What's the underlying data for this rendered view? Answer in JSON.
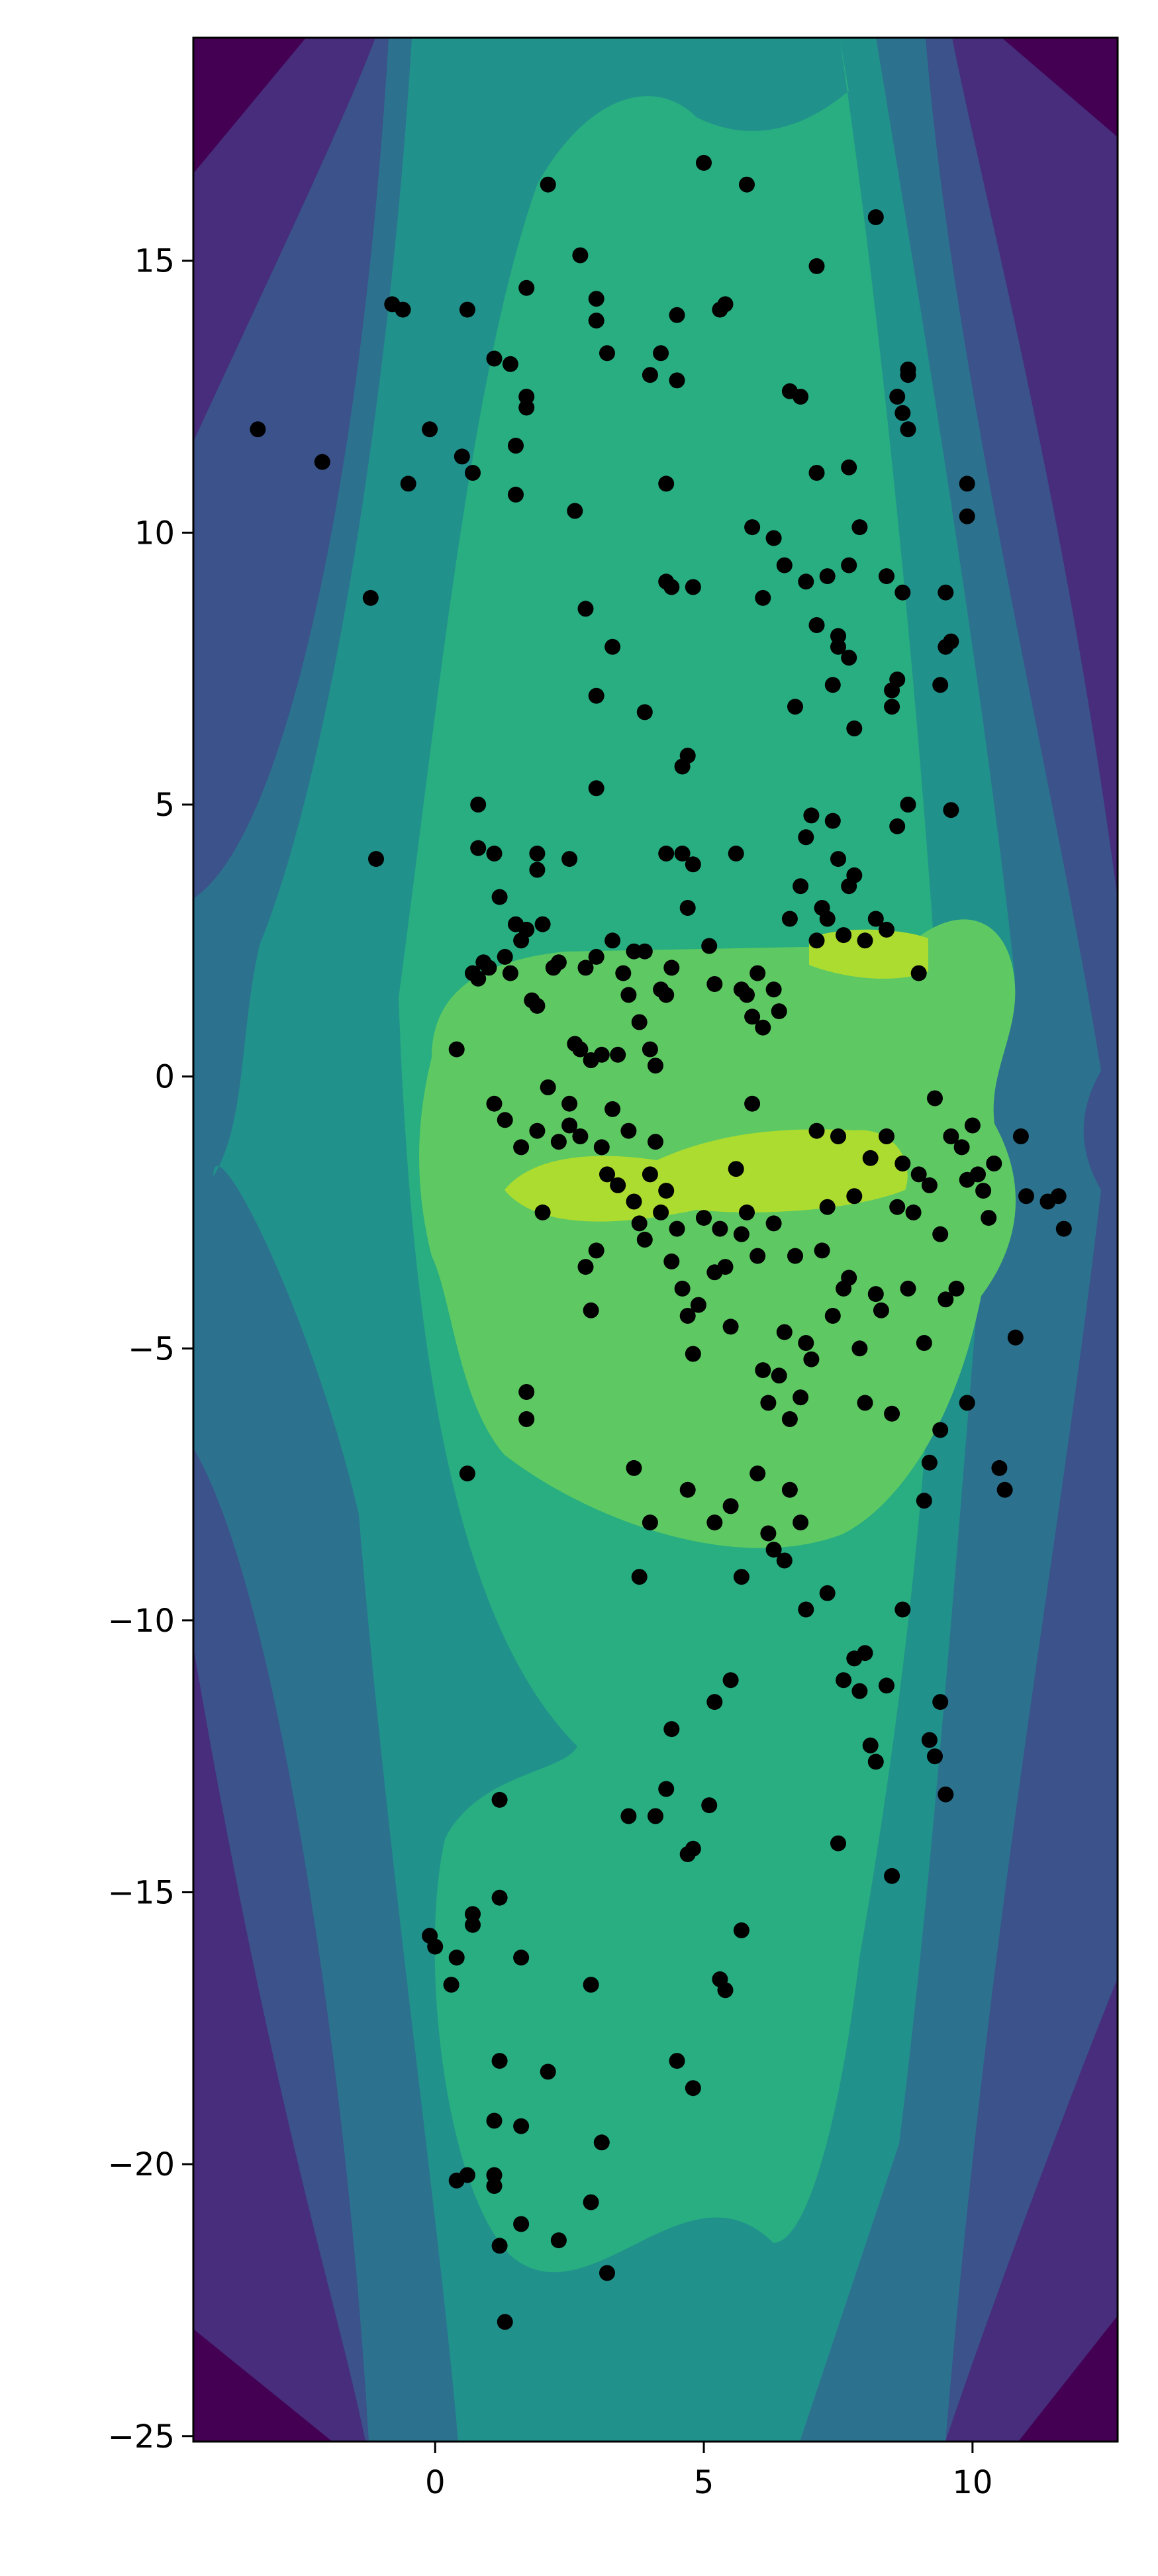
{
  "chart_data": {
    "type": "scatter",
    "subtype": "filled contour density map with scatter overlay",
    "title": "",
    "xlabel": "",
    "ylabel": "",
    "xlim": [
      -4.5,
      12.7
    ],
    "ylim": [
      -25.1,
      19.1
    ],
    "grid": false,
    "legend": "none",
    "colormap": "viridis",
    "contour_levels": [
      "#440154",
      "#472d7b",
      "#3b528b",
      "#2c728e",
      "#21918c",
      "#28ae80",
      "#5ec962",
      "#addc30",
      "#fde725"
    ],
    "x_ticks": [
      0,
      5,
      10
    ],
    "x_tick_labels": [
      "0",
      "5",
      "10"
    ],
    "y_ticks": [
      15,
      10,
      5,
      0,
      -5,
      -10,
      -15,
      -20,
      -25
    ],
    "y_tick_labels": [
      "15",
      "10",
      "5",
      "0",
      "−5",
      "−10",
      "−15",
      "−20",
      "−25"
    ],
    "point_color": "#000000",
    "points": [
      [
        -3.3,
        11.9
      ],
      [
        -2.1,
        11.3
      ],
      [
        -1.2,
        8.8
      ],
      [
        -1.1,
        4.0
      ],
      [
        -0.8,
        14.2
      ],
      [
        -0.6,
        14.1
      ],
      [
        -0.5,
        10.9
      ],
      [
        -0.1,
        11.9
      ],
      [
        0.4,
        0.5
      ],
      [
        0.5,
        11.4
      ],
      [
        0.6,
        14.1
      ],
      [
        0.7,
        11.1
      ],
      [
        0.8,
        5.0
      ],
      [
        0.8,
        4.2
      ],
      [
        1.1,
        13.2
      ],
      [
        1.4,
        13.1
      ],
      [
        1.5,
        11.6
      ],
      [
        1.5,
        10.7
      ],
      [
        1.7,
        14.5
      ],
      [
        1.7,
        12.3
      ],
      [
        1.7,
        12.5
      ],
      [
        1.9,
        3.8
      ],
      [
        2.1,
        16.4
      ],
      [
        2.6,
        10.4
      ],
      [
        2.7,
        15.1
      ],
      [
        2.8,
        8.6
      ],
      [
        3.0,
        14.3
      ],
      [
        3.0,
        13.9
      ],
      [
        3.0,
        7.0
      ],
      [
        3.2,
        13.3
      ],
      [
        3.3,
        7.9
      ],
      [
        3.9,
        6.7
      ],
      [
        4.0,
        12.9
      ],
      [
        4.2,
        13.3
      ],
      [
        4.3,
        9.1
      ],
      [
        4.3,
        10.9
      ],
      [
        4.4,
        9.0
      ],
      [
        4.5,
        14.0
      ],
      [
        4.5,
        12.8
      ],
      [
        4.6,
        5.7
      ],
      [
        4.7,
        5.9
      ],
      [
        4.8,
        9.0
      ],
      [
        5.0,
        16.8
      ],
      [
        5.3,
        14.1
      ],
      [
        5.4,
        14.2
      ],
      [
        5.8,
        16.4
      ],
      [
        5.9,
        10.1
      ],
      [
        6.1,
        8.8
      ],
      [
        6.3,
        9.9
      ],
      [
        6.5,
        9.4
      ],
      [
        6.6,
        12.6
      ],
      [
        6.8,
        12.5
      ],
      [
        6.9,
        9.1
      ],
      [
        7.1,
        14.9
      ],
      [
        7.1,
        11.1
      ],
      [
        7.1,
        8.3
      ],
      [
        7.3,
        9.2
      ],
      [
        7.5,
        8.1
      ],
      [
        7.5,
        7.9
      ],
      [
        7.7,
        11.2
      ],
      [
        7.7,
        9.4
      ],
      [
        7.7,
        7.7
      ],
      [
        7.8,
        6.4
      ],
      [
        7.9,
        10.1
      ],
      [
        8.2,
        15.8
      ],
      [
        8.4,
        9.2
      ],
      [
        8.5,
        7.1
      ],
      [
        8.6,
        12.5
      ],
      [
        8.7,
        12.2
      ],
      [
        8.7,
        8.9
      ],
      [
        8.8,
        13.0
      ],
      [
        8.8,
        12.9
      ],
      [
        8.8,
        11.9
      ],
      [
        9.5,
        8.9
      ],
      [
        9.5,
        7.9
      ],
      [
        9.6,
        8.0
      ],
      [
        9.9,
        10.9
      ],
      [
        9.9,
        10.3
      ],
      [
        8.6,
        7.3
      ],
      [
        8.5,
        6.8
      ],
      [
        7.4,
        7.2
      ],
      [
        6.7,
        6.8
      ],
      [
        9.4,
        7.2
      ],
      [
        9.6,
        4.9
      ],
      [
        3.0,
        5.3
      ],
      [
        4.3,
        4.1
      ],
      [
        0.7,
        1.9
      ],
      [
        0.8,
        1.8
      ],
      [
        0.9,
        2.1
      ],
      [
        1.0,
        2.0
      ],
      [
        1.2,
        3.3
      ],
      [
        1.3,
        2.2
      ],
      [
        1.4,
        1.9
      ],
      [
        1.5,
        2.8
      ],
      [
        1.6,
        2.5
      ],
      [
        1.7,
        2.7
      ],
      [
        1.8,
        1.4
      ],
      [
        1.9,
        1.3
      ],
      [
        2.0,
        2.8
      ],
      [
        2.1,
        -0.2
      ],
      [
        2.2,
        2.0
      ],
      [
        2.3,
        2.1
      ],
      [
        2.5,
        -0.5
      ],
      [
        2.6,
        0.6
      ],
      [
        2.7,
        0.5
      ],
      [
        2.8,
        2.0
      ],
      [
        2.9,
        0.3
      ],
      [
        3.0,
        2.2
      ],
      [
        3.1,
        0.4
      ],
      [
        3.3,
        2.5
      ],
      [
        3.4,
        0.4
      ],
      [
        3.5,
        1.9
      ],
      [
        3.6,
        1.5
      ],
      [
        3.7,
        2.3
      ],
      [
        3.8,
        1.0
      ],
      [
        3.9,
        2.3
      ],
      [
        4.0,
        0.5
      ],
      [
        4.1,
        0.2
      ],
      [
        4.2,
        1.6
      ],
      [
        4.3,
        1.5
      ],
      [
        4.4,
        2.0
      ],
      [
        4.6,
        4.1
      ],
      [
        4.7,
        3.1
      ],
      [
        4.8,
        3.9
      ],
      [
        5.1,
        2.4
      ],
      [
        5.2,
        1.7
      ],
      [
        5.6,
        4.1
      ],
      [
        5.7,
        1.6
      ],
      [
        5.8,
        1.5
      ],
      [
        5.9,
        1.1
      ],
      [
        6.0,
        1.9
      ],
      [
        6.1,
        0.9
      ],
      [
        6.3,
        1.6
      ],
      [
        6.4,
        1.2
      ],
      [
        6.6,
        2.9
      ],
      [
        6.8,
        3.5
      ],
      [
        6.9,
        4.4
      ],
      [
        7.0,
        4.8
      ],
      [
        7.1,
        2.5
      ],
      [
        7.2,
        3.1
      ],
      [
        7.3,
        2.9
      ],
      [
        7.4,
        4.7
      ],
      [
        7.5,
        4.0
      ],
      [
        7.6,
        2.6
      ],
      [
        7.7,
        3.5
      ],
      [
        7.8,
        3.7
      ],
      [
        8.0,
        2.5
      ],
      [
        8.2,
        2.9
      ],
      [
        8.4,
        2.7
      ],
      [
        8.6,
        4.6
      ],
      [
        8.8,
        5.0
      ],
      [
        9.0,
        1.9
      ],
      [
        2.5,
        4.0
      ],
      [
        1.9,
        4.1
      ],
      [
        1.1,
        4.1
      ],
      [
        1.1,
        -0.5
      ],
      [
        1.3,
        -0.8
      ],
      [
        1.6,
        -1.3
      ],
      [
        1.9,
        -1.0
      ],
      [
        2.0,
        -2.5
      ],
      [
        2.3,
        -1.2
      ],
      [
        2.5,
        -0.9
      ],
      [
        2.7,
        -1.1
      ],
      [
        2.8,
        -3.5
      ],
      [
        2.9,
        -4.3
      ],
      [
        3.0,
        -3.2
      ],
      [
        3.1,
        -1.3
      ],
      [
        3.2,
        -1.8
      ],
      [
        3.3,
        -0.6
      ],
      [
        3.4,
        -2.0
      ],
      [
        3.6,
        -1.0
      ],
      [
        3.7,
        -2.3
      ],
      [
        3.8,
        -2.7
      ],
      [
        3.9,
        -3.0
      ],
      [
        4.0,
        -1.8
      ],
      [
        4.1,
        -1.2
      ],
      [
        4.2,
        -2.5
      ],
      [
        4.3,
        -2.1
      ],
      [
        4.4,
        -3.4
      ],
      [
        4.5,
        -2.8
      ],
      [
        4.6,
        -3.9
      ],
      [
        4.7,
        -4.4
      ],
      [
        4.8,
        -5.1
      ],
      [
        4.9,
        -4.2
      ],
      [
        5.0,
        -2.6
      ],
      [
        5.2,
        -3.6
      ],
      [
        5.3,
        -2.8
      ],
      [
        5.4,
        -3.5
      ],
      [
        5.5,
        -4.6
      ],
      [
        5.6,
        -1.7
      ],
      [
        5.7,
        -2.9
      ],
      [
        5.8,
        -2.5
      ],
      [
        5.9,
        -0.5
      ],
      [
        6.0,
        -3.3
      ],
      [
        6.1,
        -5.4
      ],
      [
        6.2,
        -6.0
      ],
      [
        6.3,
        -2.7
      ],
      [
        6.4,
        -5.5
      ],
      [
        6.5,
        -4.7
      ],
      [
        6.6,
        -6.3
      ],
      [
        6.7,
        -3.3
      ],
      [
        6.8,
        -5.9
      ],
      [
        6.9,
        -4.9
      ],
      [
        7.0,
        -5.2
      ],
      [
        7.1,
        -1.0
      ],
      [
        7.2,
        -3.2
      ],
      [
        7.3,
        -2.4
      ],
      [
        7.4,
        -4.4
      ],
      [
        7.5,
        -1.1
      ],
      [
        7.6,
        -3.9
      ],
      [
        7.7,
        -3.7
      ],
      [
        7.8,
        -2.2
      ],
      [
        7.9,
        -5.0
      ],
      [
        8.0,
        -6.0
      ],
      [
        8.1,
        -1.5
      ],
      [
        8.2,
        -4.0
      ],
      [
        8.3,
        -4.3
      ],
      [
        8.4,
        -1.1
      ],
      [
        8.5,
        -6.2
      ],
      [
        8.6,
        -2.4
      ],
      [
        8.7,
        -1.6
      ],
      [
        8.8,
        -3.9
      ],
      [
        8.9,
        -2.5
      ],
      [
        9.0,
        -1.8
      ],
      [
        9.1,
        -4.9
      ],
      [
        9.2,
        -2.0
      ],
      [
        9.3,
        -0.4
      ],
      [
        9.4,
        -2.9
      ],
      [
        9.5,
        -4.1
      ],
      [
        9.6,
        -1.1
      ],
      [
        9.7,
        -3.9
      ],
      [
        9.8,
        -1.3
      ],
      [
        9.9,
        -1.9
      ],
      [
        10.0,
        -0.9
      ],
      [
        10.1,
        -1.8
      ],
      [
        10.2,
        -2.1
      ],
      [
        10.3,
        -2.6
      ],
      [
        10.4,
        -1.6
      ],
      [
        10.5,
        -7.2
      ],
      [
        10.6,
        -7.6
      ],
      [
        10.8,
        -4.8
      ],
      [
        10.9,
        -1.1
      ],
      [
        11.0,
        -2.2
      ],
      [
        11.4,
        -2.3
      ],
      [
        11.6,
        -2.2
      ],
      [
        11.7,
        -2.8
      ],
      [
        9.9,
        -6.0
      ],
      [
        9.4,
        -6.5
      ],
      [
        9.2,
        -7.1
      ],
      [
        9.1,
        -7.8
      ],
      [
        1.7,
        -5.8
      ],
      [
        1.7,
        -6.3
      ],
      [
        0.6,
        -7.3
      ],
      [
        3.7,
        -7.2
      ],
      [
        4.0,
        -8.2
      ],
      [
        4.7,
        -7.6
      ],
      [
        5.2,
        -8.2
      ],
      [
        5.5,
        -7.9
      ],
      [
        5.7,
        -9.2
      ],
      [
        6.0,
        -7.3
      ],
      [
        6.2,
        -8.4
      ],
      [
        6.3,
        -8.7
      ],
      [
        6.5,
        -8.9
      ],
      [
        6.6,
        -7.6
      ],
      [
        6.8,
        -8.2
      ],
      [
        6.9,
        -9.8
      ],
      [
        7.3,
        -9.5
      ],
      [
        3.8,
        -9.2
      ],
      [
        7.5,
        -14.1
      ],
      [
        7.6,
        -11.1
      ],
      [
        7.8,
        -10.7
      ],
      [
        7.9,
        -11.3
      ],
      [
        8.0,
        -10.6
      ],
      [
        8.1,
        -12.3
      ],
      [
        8.2,
        -12.6
      ],
      [
        8.4,
        -11.2
      ],
      [
        8.7,
        -9.8
      ],
      [
        9.2,
        -12.2
      ],
      [
        9.3,
        -12.5
      ],
      [
        9.4,
        -11.5
      ],
      [
        9.5,
        -13.2
      ],
      [
        8.5,
        -14.7
      ],
      [
        4.1,
        -13.6
      ],
      [
        4.3,
        -13.1
      ],
      [
        4.4,
        -12.0
      ],
      [
        3.6,
        -13.6
      ],
      [
        5.2,
        -11.5
      ],
      [
        5.1,
        -13.4
      ],
      [
        4.8,
        -14.2
      ],
      [
        4.7,
        -14.3
      ],
      [
        5.5,
        -11.1
      ],
      [
        -0.1,
        -15.8
      ],
      [
        0.0,
        -16.0
      ],
      [
        0.3,
        -16.7
      ],
      [
        0.4,
        -16.2
      ],
      [
        0.7,
        -15.4
      ],
      [
        0.7,
        -15.6
      ],
      [
        1.2,
        -13.3
      ],
      [
        1.2,
        -15.1
      ],
      [
        1.6,
        -16.2
      ],
      [
        1.1,
        -19.2
      ],
      [
        1.2,
        -18.1
      ],
      [
        1.6,
        -19.3
      ],
      [
        2.1,
        -18.3
      ],
      [
        2.3,
        -21.4
      ],
      [
        2.9,
        -16.7
      ],
      [
        2.9,
        -20.7
      ],
      [
        3.1,
        -19.6
      ],
      [
        3.2,
        -22.0
      ],
      [
        1.3,
        -22.9
      ],
      [
        1.6,
        -21.1
      ],
      [
        1.2,
        -21.5
      ],
      [
        1.1,
        -20.2
      ],
      [
        1.1,
        -20.4
      ],
      [
        0.4,
        -20.3
      ],
      [
        0.6,
        -20.2
      ],
      [
        4.5,
        -18.1
      ],
      [
        4.8,
        -18.6
      ],
      [
        5.3,
        -16.6
      ],
      [
        5.4,
        -16.8
      ],
      [
        5.7,
        -15.7
      ]
    ]
  }
}
